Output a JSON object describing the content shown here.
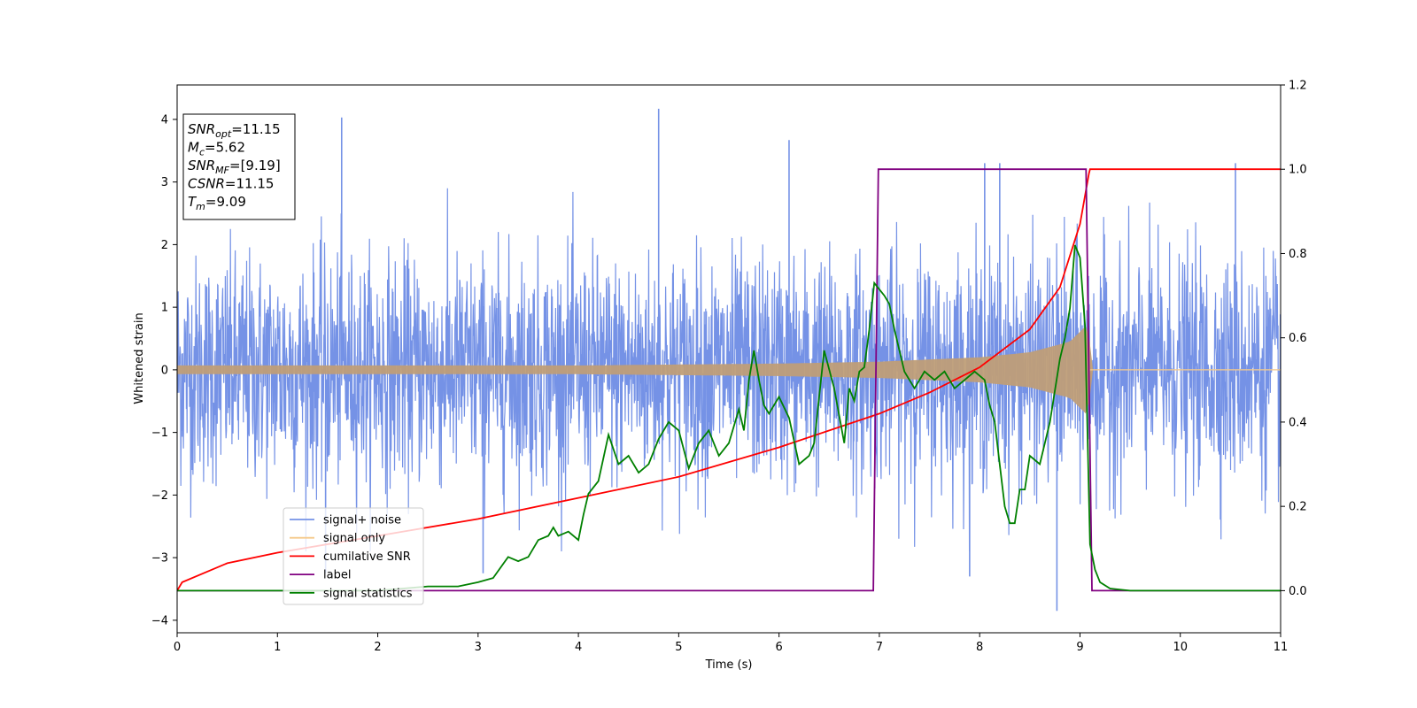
{
  "chart_data": {
    "type": "line",
    "xlabel": "Time (s)",
    "ylabel": "Whitened strain",
    "xlim": [
      0,
      11
    ],
    "ylim": [
      -4.2,
      4.55
    ],
    "y2lim": [
      -0.1,
      1.2
    ],
    "x_ticks": [
      0,
      1,
      2,
      3,
      4,
      5,
      6,
      7,
      8,
      9,
      10,
      11
    ],
    "y_ticks": [
      -4,
      -3,
      -2,
      -1,
      0,
      1,
      2,
      3,
      4
    ],
    "y2_ticks": [
      0.0,
      0.2,
      0.4,
      0.6,
      0.8,
      1.0,
      1.2
    ],
    "y2_tick_labels": [
      "0.0",
      "0.2",
      "0.4",
      "0.6",
      "0.8",
      "1.0",
      "1.2"
    ],
    "grid": false,
    "legend_position": "lower-left",
    "legend": [
      {
        "label": "signal+ noise",
        "color": "#7592e6"
      },
      {
        "label": "signal only",
        "color": "#f5c98a"
      },
      {
        "label": "cumilative SNR",
        "color": "#ff0000"
      },
      {
        "label": "label",
        "color": "#800080"
      },
      {
        "label": "signal statistics",
        "color": "#008000"
      }
    ],
    "annotation_lines": [
      {
        "var": "SNR",
        "sub": "opt",
        "value": "=11.15"
      },
      {
        "var": "M",
        "sub": "c",
        "value": "=5.62"
      },
      {
        "var": "SNR",
        "sub": "MF",
        "value": "=[9.19]"
      },
      {
        "var": "CSNR",
        "sub": "",
        "value": "=11.15"
      },
      {
        "var": "T",
        "sub": "m",
        "value": "=9.09"
      }
    ],
    "series": [
      {
        "name": "signal+ noise",
        "axis": "left",
        "color": "#7592e6",
        "note_range": "approx. Gaussian noise, std 0.9, peaks to 4.17 at t=4.8 and -3.85 at t=8.77",
        "spikes": [
          [
            1.64,
            4.03
          ],
          [
            4.8,
            4.17
          ],
          [
            6.1,
            3.67
          ],
          [
            8.05,
            3.3
          ],
          [
            8.2,
            3.3
          ],
          [
            10.55,
            3.3
          ],
          [
            8.77,
            -3.85
          ],
          [
            1.48,
            -3.25
          ],
          [
            3.05,
            -3.25
          ],
          [
            7.9,
            -3.3
          ]
        ]
      },
      {
        "name": "signal only",
        "axis": "left",
        "color": "#f5c98a",
        "envelope": {
          "t": [
            0,
            2,
            4,
            6,
            7,
            8,
            8.5,
            8.9,
            9.09,
            9.1,
            11
          ],
          "amp": [
            0.07,
            0.07,
            0.07,
            0.1,
            0.13,
            0.2,
            0.28,
            0.45,
            0.75,
            0,
            0
          ]
        }
      },
      {
        "name": "cumilative SNR",
        "axis": "right",
        "color": "#ff0000",
        "x": [
          0,
          0.05,
          0.5,
          1,
          2,
          3,
          4,
          5,
          6,
          7,
          7.5,
          8,
          8.5,
          8.8,
          9.0,
          9.09,
          9.1,
          11
        ],
        "y": [
          0.0,
          0.02,
          0.065,
          0.09,
          0.13,
          0.17,
          0.22,
          0.27,
          0.34,
          0.42,
          0.47,
          0.53,
          0.62,
          0.72,
          0.87,
          0.99,
          1.0,
          1.0
        ]
      },
      {
        "name": "label",
        "axis": "right",
        "color": "#800080",
        "x": [
          0,
          6.94,
          6.99,
          9.06,
          9.12,
          11
        ],
        "y": [
          0,
          0,
          1,
          1,
          0,
          0
        ]
      },
      {
        "name": "signal statistics",
        "axis": "right",
        "color": "#008000",
        "x": [
          0,
          1,
          2,
          2.5,
          2.8,
          2.9,
          3.0,
          3.15,
          3.3,
          3.4,
          3.5,
          3.6,
          3.7,
          3.75,
          3.8,
          3.9,
          4.0,
          4.05,
          4.1,
          4.2,
          4.3,
          4.4,
          4.5,
          4.6,
          4.7,
          4.8,
          4.9,
          5.0,
          5.1,
          5.2,
          5.3,
          5.4,
          5.5,
          5.6,
          5.65,
          5.7,
          5.75,
          5.8,
          5.85,
          5.9,
          6.0,
          6.1,
          6.2,
          6.3,
          6.35,
          6.45,
          6.55,
          6.65,
          6.7,
          6.75,
          6.8,
          6.85,
          6.9,
          6.95,
          7.05,
          7.1,
          7.15,
          7.25,
          7.35,
          7.45,
          7.55,
          7.65,
          7.75,
          7.85,
          7.95,
          8.05,
          8.1,
          8.15,
          8.2,
          8.25,
          8.3,
          8.35,
          8.4,
          8.45,
          8.5,
          8.6,
          8.7,
          8.8,
          8.85,
          8.9,
          8.95,
          9.0,
          9.05,
          9.1,
          9.15,
          9.2,
          9.3,
          9.5,
          10,
          11
        ],
        "y": [
          0.0,
          0.0,
          0.0,
          0.01,
          0.01,
          0.015,
          0.02,
          0.03,
          0.08,
          0.07,
          0.08,
          0.12,
          0.13,
          0.15,
          0.13,
          0.14,
          0.12,
          0.18,
          0.23,
          0.26,
          0.37,
          0.3,
          0.32,
          0.28,
          0.3,
          0.36,
          0.4,
          0.38,
          0.29,
          0.35,
          0.38,
          0.32,
          0.35,
          0.43,
          0.38,
          0.5,
          0.57,
          0.5,
          0.44,
          0.42,
          0.46,
          0.41,
          0.3,
          0.32,
          0.35,
          0.57,
          0.48,
          0.35,
          0.48,
          0.45,
          0.52,
          0.53,
          0.62,
          0.73,
          0.7,
          0.68,
          0.62,
          0.52,
          0.48,
          0.52,
          0.5,
          0.52,
          0.48,
          0.5,
          0.52,
          0.5,
          0.44,
          0.4,
          0.3,
          0.2,
          0.16,
          0.16,
          0.24,
          0.24,
          0.32,
          0.3,
          0.4,
          0.55,
          0.6,
          0.67,
          0.82,
          0.79,
          0.63,
          0.11,
          0.05,
          0.02,
          0.005,
          0.0,
          0.0,
          0.0
        ]
      }
    ]
  }
}
